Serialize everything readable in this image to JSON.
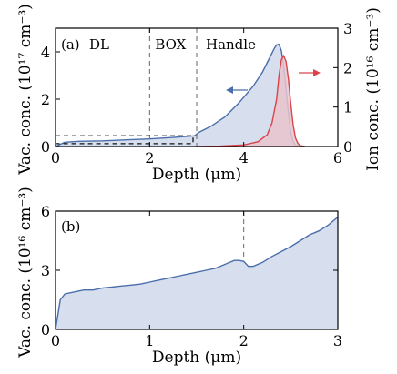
{
  "chart_data": [
    {
      "type": "area",
      "panel_label": "(a)",
      "region_labels": [
        "DL",
        "BOX",
        "Handle"
      ],
      "region_boundaries_um": [
        2,
        3
      ],
      "xlabel": "Depth (μm)",
      "xlim": [
        0,
        6
      ],
      "xticks": [
        "0",
        "2",
        "4",
        "6"
      ],
      "ylabel_left": "Vac. conc. (10¹⁷ cm⁻³)",
      "ylim_left": [
        0,
        5
      ],
      "yticks_left": [
        "0",
        "2",
        "4"
      ],
      "ylabel_right": "Ion conc. (10¹⁶ cm⁻³)",
      "ylim_right": [
        0,
        3
      ],
      "yticks_right": [
        "0",
        "1",
        "2",
        "3"
      ],
      "series": [
        {
          "axis": "left",
          "color": "#4a6eab",
          "fill": "#d7deee",
          "x": [
            0,
            0.2,
            0.5,
            1.0,
            1.5,
            2.0,
            2.5,
            2.95,
            3.0,
            3.05,
            3.3,
            3.6,
            3.9,
            4.2,
            4.4,
            4.55,
            4.65,
            4.7,
            4.75,
            4.8,
            4.85,
            4.9,
            4.95,
            5.0,
            5.05,
            5.1,
            5.2
          ],
          "y": [
            0.0,
            0.18,
            0.22,
            0.24,
            0.28,
            0.32,
            0.38,
            0.45,
            0.52,
            0.6,
            0.85,
            1.25,
            1.85,
            2.55,
            3.15,
            3.75,
            4.15,
            4.3,
            4.32,
            4.05,
            3.4,
            2.4,
            1.4,
            0.6,
            0.2,
            0.05,
            0.0
          ]
        },
        {
          "axis": "right",
          "color": "#d9434a",
          "fill": "#e7c4cd",
          "x": [
            3.0,
            3.5,
            4.0,
            4.3,
            4.5,
            4.6,
            4.7,
            4.75,
            4.8,
            4.85,
            4.9,
            4.95,
            5.0,
            5.05,
            5.1,
            5.15,
            5.2,
            5.3
          ],
          "y": [
            0.0,
            0.01,
            0.04,
            0.12,
            0.3,
            0.6,
            1.2,
            1.8,
            2.2,
            2.3,
            2.15,
            1.7,
            1.1,
            0.55,
            0.22,
            0.08,
            0.02,
            0.0
          ]
        }
      ],
      "dashed_box": {
        "x": [
          0,
          3
        ],
        "y": [
          0.12,
          0.45
        ]
      },
      "arrows": [
        {
          "points_to": "left",
          "color": "#4a6eab"
        },
        {
          "points_to": "right",
          "color": "#d9434a"
        }
      ]
    },
    {
      "type": "area",
      "panel_label": "(b)",
      "xlabel": "Depth (μm)",
      "xlim": [
        0,
        3
      ],
      "xticks": [
        "0",
        "1",
        "2",
        "3"
      ],
      "ylabel": "Vac. conc. (10¹⁶ cm⁻³)",
      "ylim": [
        0,
        6
      ],
      "yticks": [
        "0",
        "3",
        "6"
      ],
      "dashed_vline_x": 2,
      "series": [
        {
          "color": "#4a6eab",
          "fill": "#d7deee",
          "x": [
            0,
            0.02,
            0.05,
            0.1,
            0.2,
            0.3,
            0.4,
            0.5,
            0.6,
            0.7,
            0.8,
            0.9,
            1.0,
            1.1,
            1.2,
            1.3,
            1.4,
            1.5,
            1.6,
            1.7,
            1.8,
            1.9,
            1.95,
            2.0,
            2.05,
            2.1,
            2.2,
            2.3,
            2.4,
            2.5,
            2.6,
            2.7,
            2.8,
            2.9,
            3.0
          ],
          "y": [
            0,
            0.6,
            1.5,
            1.8,
            1.9,
            2.0,
            2.0,
            2.1,
            2.15,
            2.2,
            2.25,
            2.3,
            2.4,
            2.5,
            2.6,
            2.7,
            2.8,
            2.9,
            3.0,
            3.1,
            3.3,
            3.5,
            3.5,
            3.45,
            3.2,
            3.2,
            3.4,
            3.7,
            3.95,
            4.2,
            4.5,
            4.8,
            5.0,
            5.3,
            5.7
          ]
        }
      ]
    }
  ]
}
